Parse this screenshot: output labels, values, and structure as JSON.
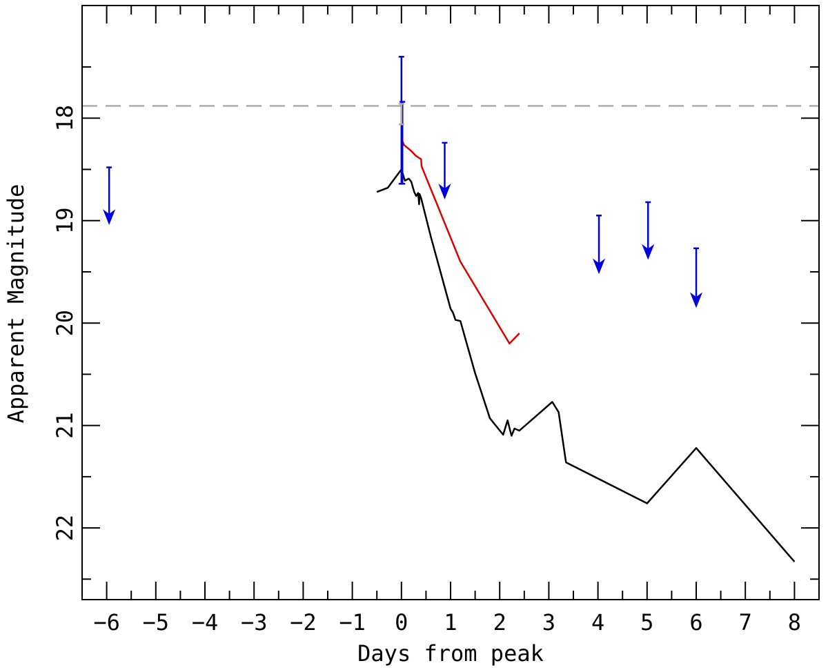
{
  "chart_data": {
    "type": "line",
    "title": "",
    "xlabel": "Days from peak",
    "ylabel": "Apparent Magnitude",
    "xlim": [
      -6.5,
      8.5
    ],
    "ylim": [
      22.7,
      16.9
    ],
    "y_inverted": true,
    "grid": false,
    "x_major_ticks": [
      -6,
      -5,
      -4,
      -3,
      -2,
      -1,
      0,
      1,
      2,
      3,
      4,
      5,
      6,
      7,
      8
    ],
    "x_tick_labels": [
      "−6",
      "−5",
      "−4",
      "−3",
      "−2",
      "−1",
      "0",
      "1",
      "2",
      "3",
      "4",
      "5",
      "6",
      "7",
      "8"
    ],
    "x_minor_step": 0.5,
    "y_major_ticks": [
      18,
      19,
      20,
      21,
      22
    ],
    "y_tick_labels": [
      "18",
      "19",
      "20",
      "21",
      "22"
    ],
    "y_minor_step": 0.5,
    "reference_line": {
      "y": 17.88,
      "style": "dashed",
      "color": "#aaaaaa"
    },
    "series": [
      {
        "color": "#000000",
        "points": [
          [
            -0.5,
            18.72
          ],
          [
            -0.28,
            18.68
          ],
          [
            0.0,
            18.5
          ],
          [
            0.07,
            18.61
          ],
          [
            0.15,
            18.59
          ],
          [
            0.2,
            18.62
          ],
          [
            0.26,
            18.72
          ],
          [
            0.3,
            18.76
          ],
          [
            0.34,
            18.73
          ],
          [
            0.36,
            18.84
          ],
          [
            0.37,
            18.74
          ],
          [
            0.4,
            18.78
          ],
          [
            0.6,
            19.16
          ],
          [
            0.8,
            19.51
          ],
          [
            1.0,
            19.86
          ],
          [
            1.05,
            19.9
          ],
          [
            1.1,
            19.97
          ],
          [
            1.2,
            19.98
          ],
          [
            1.5,
            20.49
          ],
          [
            1.8,
            20.93
          ],
          [
            2.07,
            21.09
          ],
          [
            2.16,
            20.95
          ],
          [
            2.24,
            21.1
          ],
          [
            2.3,
            21.03
          ],
          [
            2.4,
            21.05
          ],
          [
            3.07,
            20.77
          ],
          [
            3.2,
            20.87
          ],
          [
            3.35,
            21.36
          ],
          [
            5.0,
            21.76
          ],
          [
            6.0,
            21.22
          ],
          [
            8.0,
            22.33
          ]
        ]
      },
      {
        "color": "#dd0000",
        "points": [
          [
            0.0,
            18.2
          ],
          [
            0.05,
            18.26
          ],
          [
            0.2,
            18.32
          ],
          [
            0.3,
            18.37
          ],
          [
            0.4,
            18.4
          ],
          [
            0.41,
            18.47
          ],
          [
            1.2,
            19.4
          ],
          [
            2.2,
            20.2
          ],
          [
            2.4,
            20.1
          ]
        ]
      }
    ],
    "errorbars": [
      {
        "x": 0.0,
        "low": 17.4,
        "high": 18.64,
        "color": "#0000dd"
      },
      {
        "x": 0.02,
        "low": 17.84,
        "high": 18.64,
        "color": "#0000dd"
      },
      {
        "x": 0.0,
        "low": 17.86,
        "high": 18.06,
        "color": "#aaaaaa"
      }
    ],
    "upper_limits": [
      {
        "x": -5.95,
        "from": 18.48,
        "to": 19.02,
        "color": "#0000dd"
      },
      {
        "x": 0.88,
        "from": 18.24,
        "to": 18.77,
        "color": "#0000dd"
      },
      {
        "x": 4.02,
        "from": 18.95,
        "to": 19.5,
        "color": "#0000dd"
      },
      {
        "x": 5.02,
        "from": 18.82,
        "to": 19.36,
        "color": "#0000dd"
      },
      {
        "x": 6.0,
        "from": 19.27,
        "to": 19.83,
        "color": "#0000dd"
      }
    ]
  }
}
